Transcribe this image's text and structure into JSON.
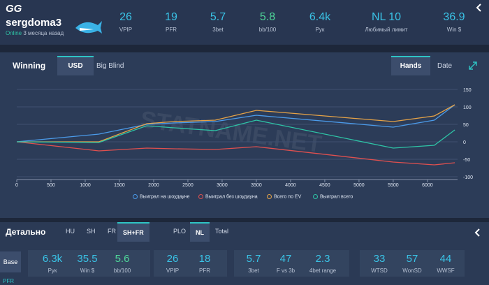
{
  "header": {
    "logo": "GG",
    "username": "sergdoma3",
    "status": "Online",
    "last_seen": "3 месяца назад",
    "stats": [
      {
        "value": "26",
        "label": "VPIP"
      },
      {
        "value": "19",
        "label": "PFR"
      },
      {
        "value": "5.7",
        "label": "3bet"
      },
      {
        "value": "5.8",
        "label": "bb/100"
      },
      {
        "value": "6.4k",
        "label": "Рук"
      },
      {
        "value": "NL 10",
        "label": "Любимый лимит"
      },
      {
        "value": "36.9",
        "label": "Win $"
      }
    ]
  },
  "chart_panel": {
    "title": "Winning",
    "units": [
      "USD",
      "Big Blind"
    ],
    "axis_modes": [
      "Hands",
      "Date"
    ],
    "watermark": "STATNAME.NET"
  },
  "chart_data": {
    "type": "line",
    "x": [
      0,
      1200,
      1900,
      2300,
      2900,
      3500,
      5500,
      6100,
      6400
    ],
    "xlim": [
      0,
      6440
    ],
    "xticks": [
      0,
      500,
      1000,
      1500,
      2000,
      2500,
      3000,
      3500,
      4000,
      4500,
      5000,
      5500,
      6000
    ],
    "ylim": [
      -100,
      150
    ],
    "yticks": [
      -100,
      -50,
      0,
      50,
      100,
      150
    ],
    "grid": true,
    "series": [
      {
        "name": "Выиграл на шоудауне",
        "color": "#4b9bea",
        "values": [
          0,
          22,
          50,
          54,
          58,
          76,
          42,
          62,
          106
        ]
      },
      {
        "name": "Выиграл без шоудауна",
        "color": "#e0504f",
        "values": [
          0,
          -26,
          -18,
          -20,
          -22,
          -14,
          -58,
          -66,
          -60
        ]
      },
      {
        "name": "Всего по EV",
        "color": "#e6a347",
        "values": [
          0,
          0,
          52,
          58,
          62,
          90,
          58,
          74,
          106
        ]
      },
      {
        "name": "Выиграл всего",
        "color": "#2ec4a6",
        "values": [
          0,
          -2,
          46,
          40,
          32,
          62,
          -18,
          -10,
          34
        ]
      }
    ]
  },
  "details": {
    "title": "Детально",
    "formats": [
      "HU",
      "SH",
      "FR",
      "SH+FR"
    ],
    "games": [
      "PLO",
      "NL",
      "Total"
    ],
    "preset": "Base",
    "groups": [
      [
        {
          "value": "6.3k",
          "label": "Рук"
        },
        {
          "value": "35.5",
          "label": "Win $"
        },
        {
          "value": "5.6",
          "label": "bb/100"
        }
      ],
      [
        {
          "value": "26",
          "label": "VPIP"
        },
        {
          "value": "18",
          "label": "PFR"
        }
      ],
      [
        {
          "value": "5.7",
          "label": "3bet"
        },
        {
          "value": "47",
          "label": "F vs 3b"
        },
        {
          "value": "2.3",
          "label": "4bet range"
        }
      ],
      [
        {
          "value": "33",
          "label": "WTSD"
        },
        {
          "value": "57",
          "label": "WonSD"
        },
        {
          "value": "44",
          "label": "WWSF"
        }
      ]
    ],
    "footer_label": "PFR"
  }
}
